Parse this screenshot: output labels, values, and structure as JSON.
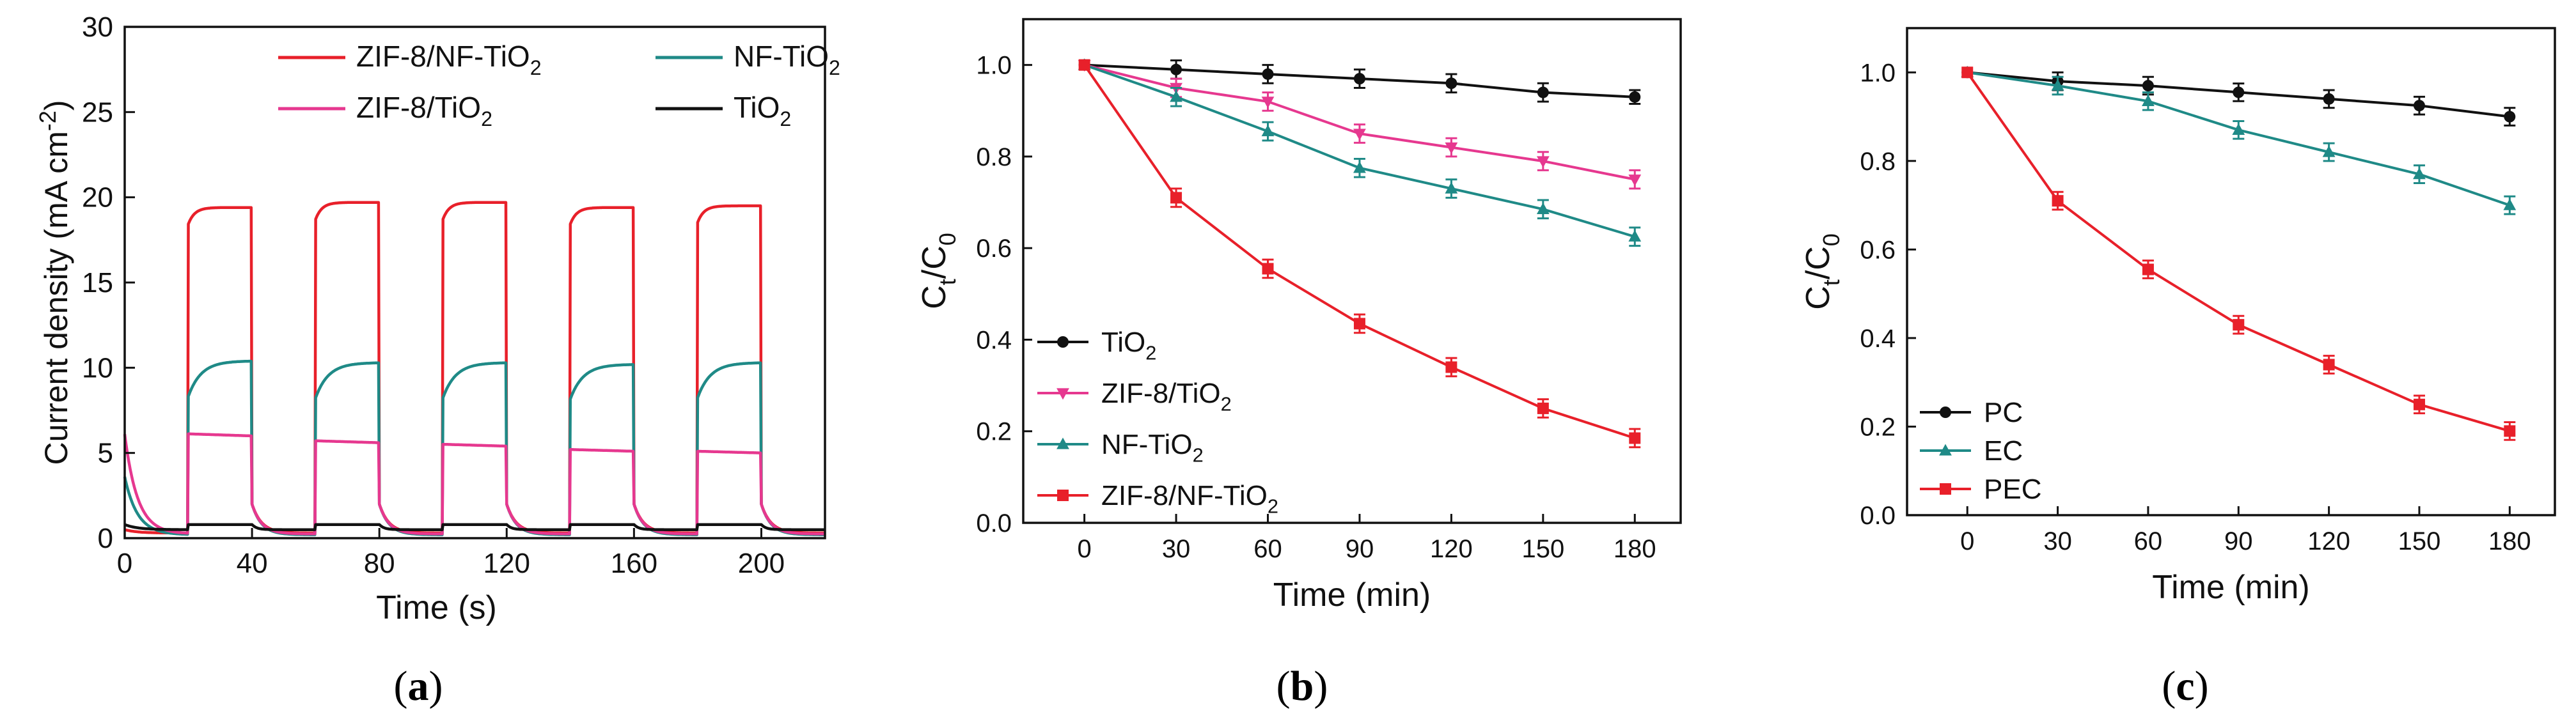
{
  "chart_data": [
    {
      "type": "line",
      "panel_label": "a",
      "xlabel": "Time (s)",
      "ylabel_main": "Current density (mA cm",
      "ylabel_sup": "-2",
      "ylabel_close": ")",
      "xlim": [
        0,
        220
      ],
      "ylim": [
        0,
        30
      ],
      "xticks": [
        0,
        40,
        80,
        120,
        160,
        200
      ],
      "yticks": [
        0,
        5,
        10,
        15,
        20,
        25,
        30
      ],
      "light_cycle": {
        "on_start": [
          20,
          60,
          100,
          140,
          180
        ],
        "duration": 20
      },
      "legend": [
        {
          "main": "ZIF-8/NF-TiO",
          "sub": "2",
          "color": "#e8202a"
        },
        {
          "main": "NF-TiO",
          "sub": "2",
          "color": "#1f8a87"
        },
        {
          "main": "ZIF-8/TiO",
          "sub": "2",
          "color": "#e6388f"
        },
        {
          "main": "TiO",
          "sub": "2",
          "color": "#111111"
        }
      ],
      "series": [
        {
          "name": "ZIF-8/NF-TiO2",
          "color": "#e8202a",
          "initial": 0.5,
          "dark_level": 0.3,
          "plateaus": [
            19.4,
            19.7,
            19.7,
            19.4,
            19.5
          ],
          "rise": "fast"
        },
        {
          "name": "NF-TiO2",
          "color": "#1f8a87",
          "initial": 3.6,
          "dark_level": 0.2,
          "plateaus": [
            10.4,
            10.3,
            10.3,
            10.2,
            10.3
          ],
          "rise": "slow"
        },
        {
          "name": "ZIF-8/TiO2",
          "color": "#e6388f",
          "initial": 6.1,
          "dark_level": 0.25,
          "plateaus": [
            6.0,
            5.6,
            5.4,
            5.1,
            5.0
          ],
          "rise": "decay"
        },
        {
          "name": "TiO2",
          "color": "#111111",
          "initial": 0.8,
          "dark_level": 0.5,
          "plateaus": [
            0.8,
            0.8,
            0.8,
            0.8,
            0.8
          ],
          "rise": "flat"
        }
      ]
    },
    {
      "type": "line",
      "panel_label": "b",
      "xlabel": "Time (min)",
      "ylabel": "Ct/C0",
      "xlim": [
        -20,
        195
      ],
      "ylim": [
        0.0,
        1.1
      ],
      "xticks": [
        0,
        30,
        60,
        90,
        120,
        150,
        180
      ],
      "yticks": [
        0.0,
        0.2,
        0.4,
        0.6,
        0.8,
        1.0
      ],
      "x": [
        0,
        30,
        60,
        90,
        120,
        150,
        180
      ],
      "legend": [
        {
          "main": "TiO",
          "sub": "2",
          "color": "#111111",
          "marker": "circle"
        },
        {
          "main": "ZIF-8/TiO",
          "sub": "2",
          "color": "#e6388f",
          "marker": "triangle-down"
        },
        {
          "main": "NF-TiO",
          "sub": "2",
          "color": "#1f8a87",
          "marker": "triangle-up"
        },
        {
          "main": "ZIF-8/NF-TiO",
          "sub": "2",
          "color": "#e8202a",
          "marker": "square"
        }
      ],
      "series": [
        {
          "name": "TiO2",
          "color": "#111111",
          "marker": "circle",
          "values": [
            1.0,
            0.99,
            0.98,
            0.97,
            0.96,
            0.94,
            0.93
          ],
          "errors": [
            0.01,
            0.02,
            0.02,
            0.02,
            0.02,
            0.02,
            0.015
          ]
        },
        {
          "name": "ZIF-8/TiO2",
          "color": "#e6388f",
          "marker": "triangle-down",
          "values": [
            1.0,
            0.95,
            0.92,
            0.85,
            0.82,
            0.79,
            0.75
          ],
          "errors": [
            0.01,
            0.02,
            0.02,
            0.02,
            0.02,
            0.02,
            0.02
          ]
        },
        {
          "name": "NF-TiO2",
          "color": "#1f8a87",
          "marker": "triangle-up",
          "values": [
            1.0,
            0.93,
            0.855,
            0.775,
            0.73,
            0.685,
            0.625
          ],
          "errors": [
            0.01,
            0.02,
            0.02,
            0.02,
            0.02,
            0.02,
            0.02
          ]
        },
        {
          "name": "ZIF-8/NF-TiO2",
          "color": "#e8202a",
          "marker": "square",
          "values": [
            1.0,
            0.71,
            0.555,
            0.435,
            0.34,
            0.25,
            0.185
          ],
          "errors": [
            0.01,
            0.02,
            0.02,
            0.02,
            0.02,
            0.02,
            0.02
          ]
        }
      ]
    },
    {
      "type": "line",
      "panel_label": "c",
      "xlabel": "Time (min)",
      "ylabel": "Ct/C0",
      "xlim": [
        -20,
        195
      ],
      "ylim": [
        0.0,
        1.1
      ],
      "xticks": [
        0,
        30,
        60,
        90,
        120,
        150,
        180
      ],
      "yticks": [
        0.0,
        0.2,
        0.4,
        0.6,
        0.8,
        1.0
      ],
      "x": [
        0,
        30,
        60,
        90,
        120,
        150,
        180
      ],
      "legend": [
        {
          "main": "PC",
          "sub": "",
          "color": "#111111",
          "marker": "circle"
        },
        {
          "main": "EC",
          "sub": "",
          "color": "#1f8a87",
          "marker": "triangle-up"
        },
        {
          "main": "PEC",
          "sub": "",
          "color": "#e8202a",
          "marker": "square"
        }
      ],
      "series": [
        {
          "name": "PC",
          "color": "#111111",
          "marker": "circle",
          "values": [
            1.0,
            0.98,
            0.97,
            0.955,
            0.94,
            0.925,
            0.9
          ],
          "errors": [
            0.01,
            0.02,
            0.02,
            0.02,
            0.02,
            0.02,
            0.02
          ]
        },
        {
          "name": "EC",
          "color": "#1f8a87",
          "marker": "triangle-up",
          "values": [
            1.0,
            0.97,
            0.935,
            0.87,
            0.82,
            0.77,
            0.7
          ],
          "errors": [
            0.01,
            0.02,
            0.02,
            0.02,
            0.02,
            0.02,
            0.02
          ]
        },
        {
          "name": "PEC",
          "color": "#e8202a",
          "marker": "square",
          "values": [
            1.0,
            0.71,
            0.555,
            0.43,
            0.34,
            0.25,
            0.19
          ],
          "errors": [
            0.01,
            0.02,
            0.02,
            0.02,
            0.02,
            0.02,
            0.02
          ]
        }
      ]
    }
  ]
}
